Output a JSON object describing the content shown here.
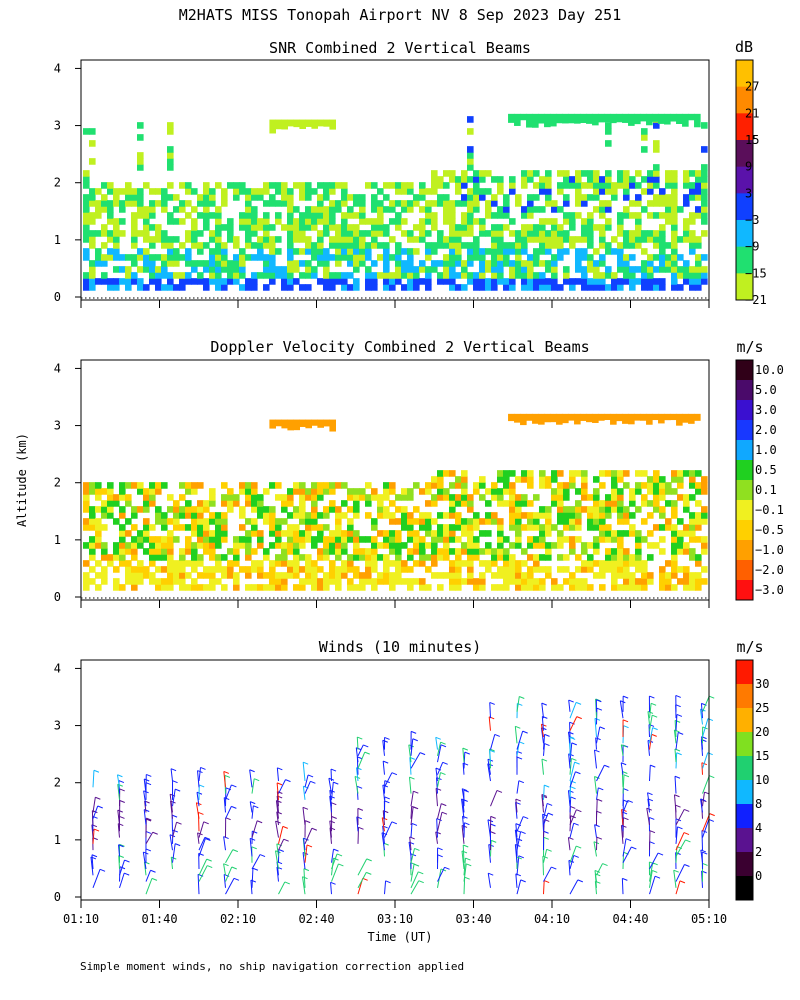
{
  "page_title": "M2HATS MISS Tonopah Airport NV   8 Sep 2023 Day 251",
  "y_axis_label": "Altitude (km)",
  "x_axis_label": "Time (UT)",
  "time_ticks": [
    "01:10",
    "01:40",
    "02:10",
    "02:40",
    "03:10",
    "03:40",
    "04:10",
    "04:40",
    "05:10"
  ],
  "altitude_ticks": [
    "0",
    "1",
    "2",
    "3",
    "4"
  ],
  "footnote": "Simple moment winds, no ship navigation correction applied",
  "chart_data": [
    {
      "type": "heatmap",
      "title": "SNR Combined 2 Vertical Beams",
      "xlabel": "Time (UT)",
      "ylabel": "Altitude (km)",
      "xlim": [
        "01:10",
        "05:10"
      ],
      "ylim": [
        0,
        4
      ],
      "colorbar_unit": "dB",
      "colorbar_labels": [
        "27",
        "21",
        "15",
        "9",
        "3",
        "−3",
        "−9",
        "−15",
        "−21"
      ],
      "colorbar_colors": [
        "#ffc000",
        "#ff8a00",
        "#ff2000",
        "#5a0e5a",
        "#5a12aa",
        "#1040ff",
        "#10b8ff",
        "#20e070",
        "#c0f020"
      ]
    },
    {
      "type": "heatmap",
      "title": "Doppler Velocity Combined 2 Vertical Beams",
      "xlabel": "Time (UT)",
      "ylabel": "Altitude (km)",
      "xlim": [
        "01:10",
        "05:10"
      ],
      "ylim": [
        0,
        4
      ],
      "colorbar_unit": "m/s",
      "colorbar_labels": [
        "10.0",
        "5.0",
        "3.0",
        "2.0",
        "1.0",
        "0.5",
        "0.1",
        "−0.1",
        "−0.5",
        "−1.0",
        "−2.0",
        "−3.0"
      ],
      "colorbar_colors": [
        "#300018",
        "#4a0a6a",
        "#3a10d0",
        "#1838ff",
        "#10a8ff",
        "#20d020",
        "#90e020",
        "#f0f020",
        "#ffd000",
        "#ffa000",
        "#ff6000",
        "#ff1010"
      ]
    },
    {
      "type": "scatter",
      "title": "Winds (10 minutes)",
      "xlabel": "Time (UT)",
      "ylabel": "Altitude (km)",
      "xlim": [
        "01:10",
        "05:10"
      ],
      "ylim": [
        0,
        4
      ],
      "colorbar_unit": "m/s",
      "colorbar_labels": [
        "30",
        "25",
        "20",
        "15",
        "10",
        "8",
        "4",
        "2",
        "0"
      ],
      "colorbar_colors": [
        "#ff1a00",
        "#ff7a00",
        "#ffb000",
        "#80e020",
        "#20d070",
        "#10b8ff",
        "#1020ff",
        "#5a1290",
        "#3a0030",
        "#000000"
      ]
    }
  ]
}
